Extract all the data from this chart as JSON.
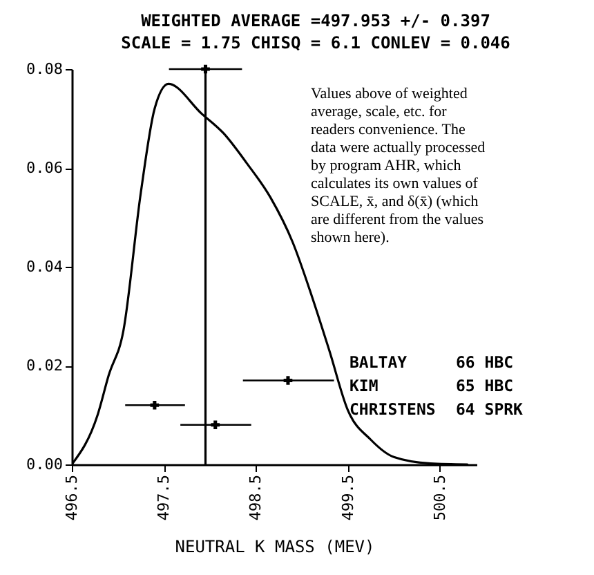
{
  "chart_data": {
    "type": "line",
    "title": "WEIGHTED AVERAGE =497.953 +/- 0.397",
    "subtitle": "SCALE = 1.75    CHISQ =  6.1    CONLEV = 0.046",
    "xlabel": "NEUTRAL K MASS (MEV)",
    "xlim": [
      496.5,
      500.9
    ],
    "xticks": [
      496.5,
      497.5,
      498.5,
      499.5,
      500.5
    ],
    "ylim": [
      0,
      0.08
    ],
    "yticks": [
      {
        "value": 0,
        "label": "0.00"
      },
      {
        "value": 0.02,
        "label": "0.02"
      },
      {
        "value": 0.04,
        "label": "0.04"
      },
      {
        "value": 0.06,
        "label": "0.06"
      },
      {
        "value": 0.08,
        "label": "0.08"
      }
    ],
    "grid": false,
    "series": [
      {
        "color": "#000000",
        "marker": "none",
        "x": [
          496.5,
          496.78,
          496.9,
          497.06,
          497.25,
          497.4,
          497.55,
          497.91,
          498.15,
          498.4,
          498.66,
          498.9,
          499.11,
          499.3,
          499.5,
          499.75,
          500.0,
          500.4,
          500.8
        ],
        "values": [
          0,
          0.01,
          0.018,
          0.027,
          0.055,
          0.072,
          0.077,
          0.071,
          0.067,
          0.061,
          0.054,
          0.045,
          0.034,
          0.023,
          0.011,
          0.005,
          0.0015,
          0.0002,
          0
        ]
      },
      {
        "type": "scatter",
        "color": "#000000",
        "marker": "cross",
        "x": [
          497.4,
          498.06,
          498.85
        ],
        "values": [
          0.012,
          0.008,
          0.017
        ],
        "xerrors": [
          [
            497.08,
            497.73
          ],
          [
            497.68,
            498.45
          ],
          [
            498.36,
            499.35
          ]
        ]
      },
      {
        "type": "scatter",
        "color": "#000000",
        "marker": "cross",
        "x": [
          497.953
        ],
        "values": [
          0.08
        ],
        "xerrors": [
          0.397
        ]
      }
    ],
    "ref_lines": [
      {
        "axis": "x",
        "value": 497.953
      }
    ],
    "annotations": [
      "Values above of weighted average, scale, etc. for readers convenience.  The data were actually processed by program AHR, which calculates its own values of SCALE, x̄, and δ(x̄) (which are different from the values shown here).",
      "BALTAY 66 HBC",
      "KIM 65 HBC",
      "CHRISTENS 64 SPRK"
    ]
  }
}
